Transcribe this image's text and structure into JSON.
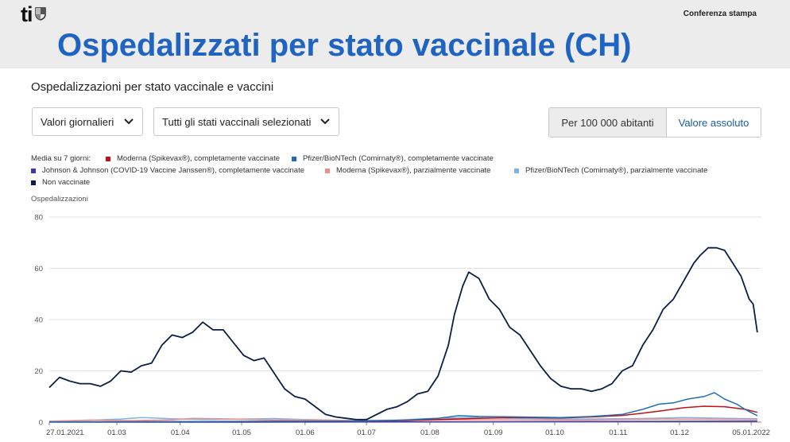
{
  "header": {
    "logo_text": "ti",
    "conference": "Conferenza stampa",
    "title": "Ospedalizzati per stato vaccinale (CH)"
  },
  "panel": {
    "subtitle": "Ospedalizzazioni per stato vaccinale e vaccini",
    "dropdown_period": "Valori giornalieri",
    "dropdown_status": "Tutti gli stati vaccinali selezionati",
    "toggle_per100k": "Per 100 000 abitanti",
    "toggle_absolute": "Valore assoluto"
  },
  "legend": {
    "prefix": "Media su 7 giorni:"
  },
  "chart_data": {
    "type": "line",
    "ylabel": "Ospedalizzazioni",
    "ylim": [
      0,
      80
    ],
    "y_ticks": [
      0,
      20,
      40,
      60,
      80
    ],
    "x_tick_labels": [
      "27.01.2021",
      "01.03",
      "01.04",
      "01.05",
      "01.06",
      "01.07",
      "01.08",
      "01.09",
      "01.10",
      "01.11",
      "01.12",
      "05.01.2022"
    ],
    "x_tick_days": [
      0,
      33,
      64,
      94,
      125,
      155,
      186,
      217,
      247,
      278,
      308,
      343
    ],
    "x_range_days": [
      0,
      348
    ],
    "grid": true,
    "series": [
      {
        "name": "Moderna (Spikevax®), completamente vaccinate",
        "color": "#c0121a",
        "x": [
          0,
          60,
          150,
          175,
          190,
          210,
          230,
          250,
          265,
          280,
          290,
          300,
          310,
          320,
          330,
          340,
          346
        ],
        "y": [
          0.1,
          0.2,
          0.4,
          0.6,
          1,
          1.5,
          1.8,
          1.6,
          2,
          2.6,
          3.5,
          4.5,
          5.6,
          6.2,
          6,
          5,
          3.8
        ]
      },
      {
        "name": "Pfizer/BioNTech (Comirnaty®), completamente vaccinate",
        "color": "#1f6fb2",
        "x": [
          0,
          60,
          150,
          175,
          190,
          200,
          210,
          230,
          250,
          265,
          280,
          290,
          298,
          305,
          312,
          320,
          325,
          330,
          336,
          340,
          346
        ],
        "y": [
          0.1,
          0.2,
          0.4,
          0.8,
          1.5,
          2.5,
          2.2,
          2,
          1.8,
          2.2,
          3,
          5,
          7,
          7.5,
          9,
          10,
          11.5,
          9,
          7,
          5,
          2.5
        ]
      },
      {
        "name": "Johnson & Johnson (COVID-19 Vaccine Janssen®), completamente vaccinate",
        "color": "#3b3aa6",
        "x": [
          0,
          100,
          200,
          300,
          346
        ],
        "y": [
          0,
          0,
          0.1,
          0.3,
          0.4
        ]
      },
      {
        "name": "Moderna (Spikevax®), parzialmente vaccinate",
        "color": "#ee8e8a",
        "x": [
          0,
          20,
          40,
          60,
          70,
          90,
          110,
          130,
          150,
          180,
          220,
          260,
          300,
          346
        ],
        "y": [
          0.3,
          0.8,
          0.6,
          0.9,
          1.5,
          1.2,
          0.8,
          0.9,
          0.6,
          0.7,
          0.9,
          0.8,
          1.2,
          1
        ]
      },
      {
        "name": "Pfizer/BioNTech (Comirnaty®), parzialmente vaccinate",
        "color": "#7eb4e4",
        "x": [
          0,
          20,
          35,
          45,
          60,
          75,
          95,
          110,
          125,
          150,
          170,
          185,
          205,
          230,
          260,
          290,
          310,
          330,
          346
        ],
        "y": [
          0.4,
          0.7,
          1.2,
          1.8,
          1.3,
          1,
          1.2,
          1.4,
          1,
          0.6,
          0.8,
          1.4,
          1.8,
          1.5,
          1.2,
          1.4,
          1.8,
          1.5,
          1.3
        ]
      },
      {
        "name": "Non vaccinate",
        "color": "#0b1f44",
        "x": [
          0,
          5,
          10,
          15,
          20,
          25,
          30,
          35,
          40,
          45,
          50,
          55,
          60,
          65,
          70,
          75,
          80,
          85,
          90,
          95,
          100,
          105,
          110,
          115,
          120,
          125,
          130,
          135,
          140,
          145,
          150,
          155,
          160,
          165,
          170,
          175,
          180,
          185,
          190,
          195,
          198,
          202,
          205,
          210,
          215,
          220,
          225,
          230,
          235,
          240,
          245,
          250,
          255,
          260,
          265,
          270,
          275,
          280,
          285,
          290,
          295,
          300,
          305,
          310,
          315,
          318,
          322,
          326,
          330,
          334,
          338,
          342,
          344,
          346
        ],
        "y": [
          13.5,
          17.5,
          16,
          15,
          15,
          14,
          16,
          20,
          19.5,
          22,
          23,
          30,
          34,
          33,
          35,
          39,
          36,
          36,
          31,
          26,
          24,
          25,
          19,
          13,
          10,
          9,
          6,
          3,
          2,
          1.5,
          1,
          1,
          3,
          5,
          6,
          8,
          11,
          12,
          18,
          30,
          42,
          53,
          58.5,
          56,
          48,
          44,
          37,
          34,
          28,
          22,
          17,
          14,
          13,
          13,
          12,
          13,
          15,
          20,
          22,
          30,
          36,
          44,
          48,
          55,
          62,
          65,
          68,
          68,
          67,
          62,
          57,
          48,
          46,
          35
        ]
      }
    ]
  }
}
